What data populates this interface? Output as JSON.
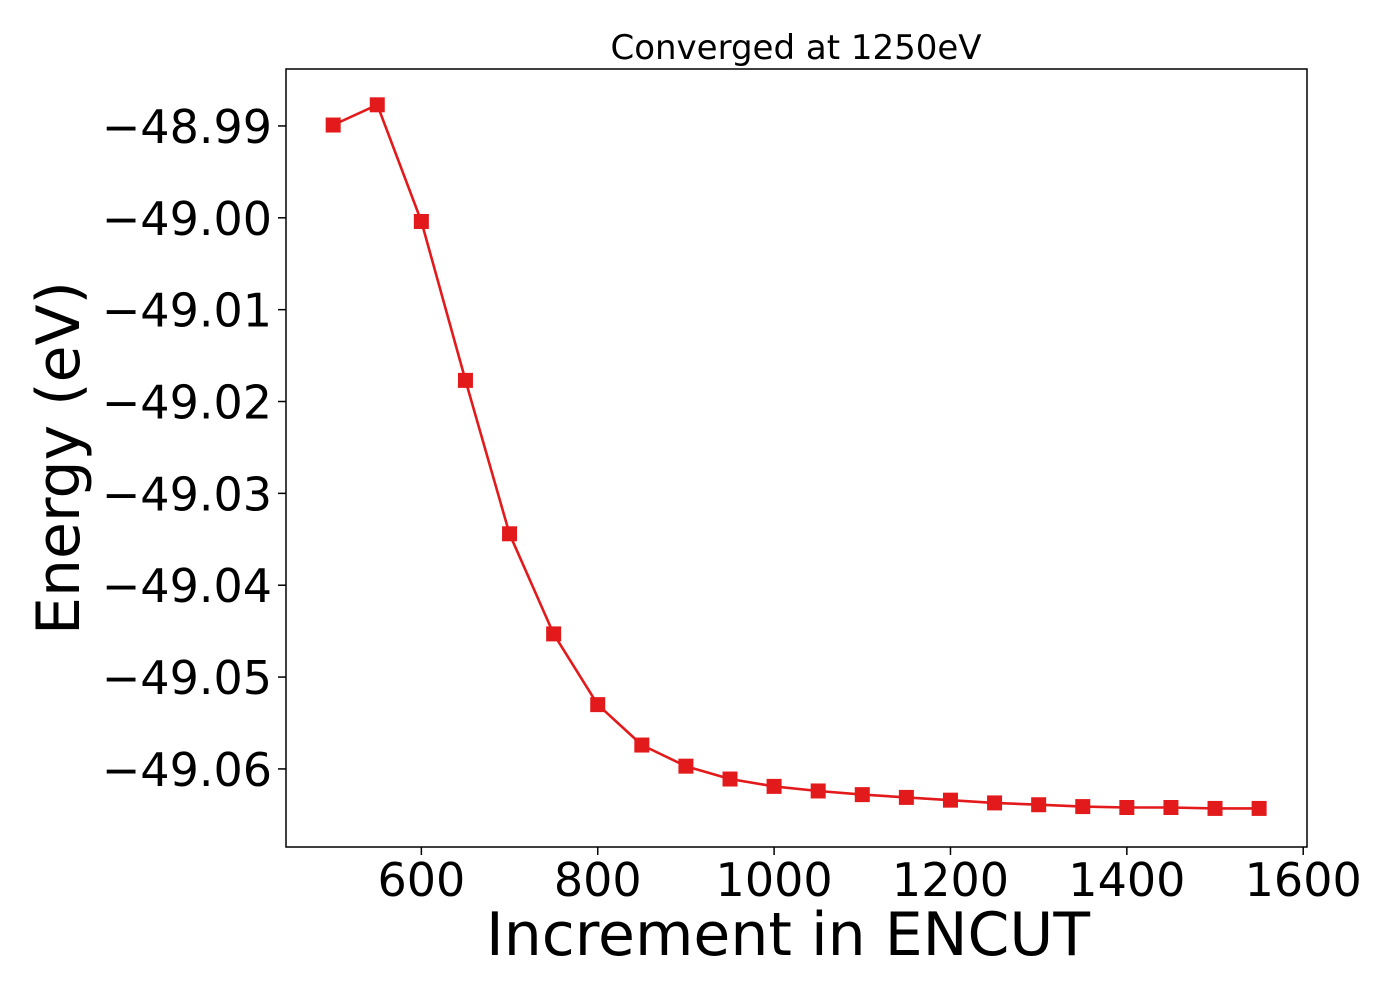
{
  "chart_data": {
    "type": "line",
    "title": "Converged at 1250eV",
    "xlabel": "Increment in ENCUT",
    "ylabel": "Energy (eV)",
    "xlim": [
      446.5,
      1604.3
    ],
    "ylim": [
      -49.0685,
      -48.9838
    ],
    "xticks": [
      600,
      800,
      1000,
      1200,
      1400,
      1600
    ],
    "yticks": [
      -48.99,
      -49.0,
      -49.01,
      -49.02,
      -49.03,
      -49.04,
      -49.05,
      -49.06
    ],
    "ytick_labels": [
      "−48.99",
      "−49.00",
      "−49.01",
      "−49.02",
      "−49.03",
      "−49.04",
      "−49.05",
      "−49.06"
    ],
    "grid": false,
    "series": [
      {
        "color": "#e31a1c",
        "marker": "square",
        "x": [
          500,
          550,
          600,
          650,
          700,
          750,
          800,
          850,
          900,
          950,
          1000,
          1050,
          1100,
          1150,
          1200,
          1250,
          1300,
          1350,
          1400,
          1450,
          1500,
          1550
        ],
        "y": [
          -48.9899,
          -48.9877,
          -49.0004,
          -49.0177,
          -49.0344,
          -49.0453,
          -49.053,
          -49.0574,
          -49.0597,
          -49.0611,
          -49.0619,
          -49.0624,
          -49.0628,
          -49.0631,
          -49.0634,
          -49.0637,
          -49.0639,
          -49.0641,
          -49.0642,
          -49.0642,
          -49.0643,
          -49.0643
        ]
      }
    ]
  }
}
